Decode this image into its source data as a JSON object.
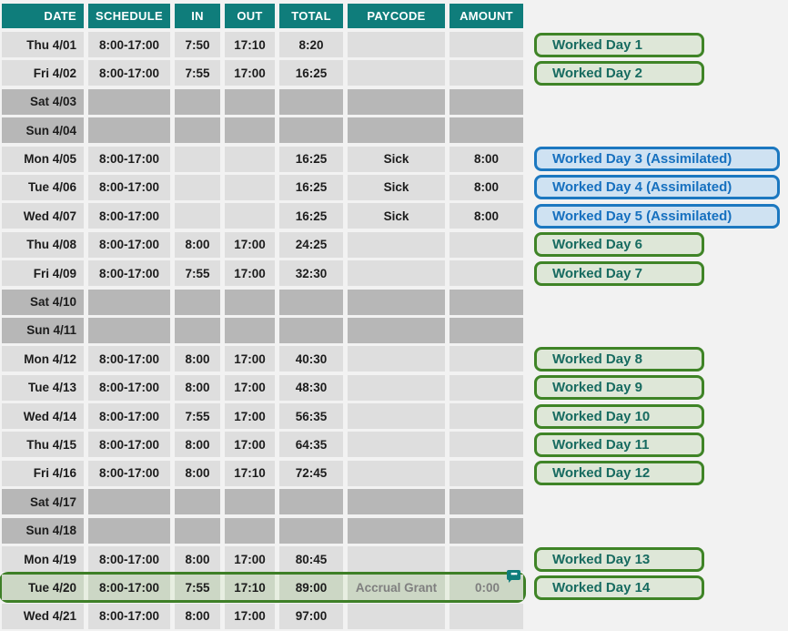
{
  "page": {
    "background": "#f2f2f2"
  },
  "colors": {
    "header_bg": "#0f7d7b",
    "workday_row_bg": "#dedede",
    "weekend_row_bg": "#b7b7b7",
    "highlight_border": "#3e7f27",
    "highlight_cell_bg": "#ccd7c5",
    "muted_text": "#7f7f7f",
    "green_label_border": "#3f8427",
    "green_label_bg": "#dee7d8",
    "green_label_text": "#176b60",
    "blue_label_border": "#1c78c0",
    "blue_label_bg": "#cfe2f2",
    "blue_label_text": "#1670bf"
  },
  "icons": {
    "comment_dots": "•••"
  },
  "table": {
    "columns": [
      "DATE",
      "SCHEDULE",
      "IN",
      "OUT",
      "TOTAL",
      "PAYCODE",
      "AMOUNT"
    ],
    "rows": [
      {
        "date": "Thu 4/01",
        "schedule": "8:00-17:00",
        "in": "7:50",
        "out": "17:10",
        "total": "8:20",
        "paycode": "",
        "amount": "",
        "type": "workday",
        "highlight": false,
        "note_icon": false,
        "label": {
          "text": "Worked Day 1",
          "style": "green"
        }
      },
      {
        "date": "Fri 4/02",
        "schedule": "8:00-17:00",
        "in": "7:55",
        "out": "17:00",
        "total": "16:25",
        "paycode": "",
        "amount": "",
        "type": "workday",
        "highlight": false,
        "note_icon": false,
        "label": {
          "text": "Worked Day 2",
          "style": "green"
        }
      },
      {
        "date": "Sat 4/03",
        "schedule": "",
        "in": "",
        "out": "",
        "total": "",
        "paycode": "",
        "amount": "",
        "type": "weekend",
        "highlight": false,
        "note_icon": false,
        "label": null
      },
      {
        "date": "Sun 4/04",
        "schedule": "",
        "in": "",
        "out": "",
        "total": "",
        "paycode": "",
        "amount": "",
        "type": "weekend",
        "highlight": false,
        "note_icon": false,
        "label": null
      },
      {
        "date": "Mon 4/05",
        "schedule": "8:00-17:00",
        "in": "",
        "out": "",
        "total": "16:25",
        "paycode": "Sick",
        "amount": "8:00",
        "type": "workday",
        "highlight": false,
        "note_icon": false,
        "label": {
          "text": "Worked Day 3 (Assimilated)",
          "style": "blue"
        }
      },
      {
        "date": "Tue 4/06",
        "schedule": "8:00-17:00",
        "in": "",
        "out": "",
        "total": "16:25",
        "paycode": "Sick",
        "amount": "8:00",
        "type": "workday",
        "highlight": false,
        "note_icon": false,
        "label": {
          "text": "Worked Day 4 (Assimilated)",
          "style": "blue"
        }
      },
      {
        "date": "Wed 4/07",
        "schedule": "8:00-17:00",
        "in": "",
        "out": "",
        "total": "16:25",
        "paycode": "Sick",
        "amount": "8:00",
        "type": "workday",
        "highlight": false,
        "note_icon": false,
        "label": {
          "text": "Worked Day 5 (Assimilated)",
          "style": "blue"
        }
      },
      {
        "date": "Thu 4/08",
        "schedule": "8:00-17:00",
        "in": "8:00",
        "out": "17:00",
        "total": "24:25",
        "paycode": "",
        "amount": "",
        "type": "workday",
        "highlight": false,
        "note_icon": false,
        "label": {
          "text": "Worked Day 6",
          "style": "green"
        }
      },
      {
        "date": "Fri 4/09",
        "schedule": "8:00-17:00",
        "in": "7:55",
        "out": "17:00",
        "total": "32:30",
        "paycode": "",
        "amount": "",
        "type": "workday",
        "highlight": false,
        "note_icon": false,
        "label": {
          "text": "Worked Day 7",
          "style": "green"
        }
      },
      {
        "date": "Sat 4/10",
        "schedule": "",
        "in": "",
        "out": "",
        "total": "",
        "paycode": "",
        "amount": "",
        "type": "weekend",
        "highlight": false,
        "note_icon": false,
        "label": null
      },
      {
        "date": "Sun 4/11",
        "schedule": "",
        "in": "",
        "out": "",
        "total": "",
        "paycode": "",
        "amount": "",
        "type": "weekend",
        "highlight": false,
        "note_icon": false,
        "label": null
      },
      {
        "date": "Mon 4/12",
        "schedule": "8:00-17:00",
        "in": "8:00",
        "out": "17:00",
        "total": "40:30",
        "paycode": "",
        "amount": "",
        "type": "workday",
        "highlight": false,
        "note_icon": false,
        "label": {
          "text": "Worked Day 8",
          "style": "green"
        }
      },
      {
        "date": "Tue 4/13",
        "schedule": "8:00-17:00",
        "in": "8:00",
        "out": "17:00",
        "total": "48:30",
        "paycode": "",
        "amount": "",
        "type": "workday",
        "highlight": false,
        "note_icon": false,
        "label": {
          "text": "Worked Day 9",
          "style": "green"
        }
      },
      {
        "date": "Wed 4/14",
        "schedule": "8:00-17:00",
        "in": "7:55",
        "out": "17:00",
        "total": "56:35",
        "paycode": "",
        "amount": "",
        "type": "workday",
        "highlight": false,
        "note_icon": false,
        "label": {
          "text": "Worked Day 10",
          "style": "green"
        }
      },
      {
        "date": "Thu 4/15",
        "schedule": "8:00-17:00",
        "in": "8:00",
        "out": "17:00",
        "total": "64:35",
        "paycode": "",
        "amount": "",
        "type": "workday",
        "highlight": false,
        "note_icon": false,
        "label": {
          "text": "Worked Day 11",
          "style": "green"
        }
      },
      {
        "date": "Fri 4/16",
        "schedule": "8:00-17:00",
        "in": "8:00",
        "out": "17:10",
        "total": "72:45",
        "paycode": "",
        "amount": "",
        "type": "workday",
        "highlight": false,
        "note_icon": false,
        "label": {
          "text": "Worked Day 12",
          "style": "green"
        }
      },
      {
        "date": "Sat 4/17",
        "schedule": "",
        "in": "",
        "out": "",
        "total": "",
        "paycode": "",
        "amount": "",
        "type": "weekend",
        "highlight": false,
        "note_icon": false,
        "label": null
      },
      {
        "date": "Sun 4/18",
        "schedule": "",
        "in": "",
        "out": "",
        "total": "",
        "paycode": "",
        "amount": "",
        "type": "weekend",
        "highlight": false,
        "note_icon": false,
        "label": null
      },
      {
        "date": "Mon 4/19",
        "schedule": "8:00-17:00",
        "in": "8:00",
        "out": "17:00",
        "total": "80:45",
        "paycode": "",
        "amount": "",
        "type": "workday",
        "highlight": false,
        "note_icon": false,
        "label": {
          "text": "Worked Day 13",
          "style": "green"
        }
      },
      {
        "date": "Tue 4/20",
        "schedule": "8:00-17:00",
        "in": "7:55",
        "out": "17:10",
        "total": "89:00",
        "paycode": "Accrual Grant",
        "amount": "0:00",
        "type": "workday",
        "highlight": true,
        "note_icon": true,
        "muted": true,
        "label": {
          "text": "Worked Day 14",
          "style": "green"
        }
      },
      {
        "date": "Wed 4/21",
        "schedule": "8:00-17:00",
        "in": "8:00",
        "out": "17:00",
        "total": "97:00",
        "paycode": "",
        "amount": "",
        "type": "workday",
        "highlight": false,
        "note_icon": false,
        "label": null
      }
    ]
  }
}
